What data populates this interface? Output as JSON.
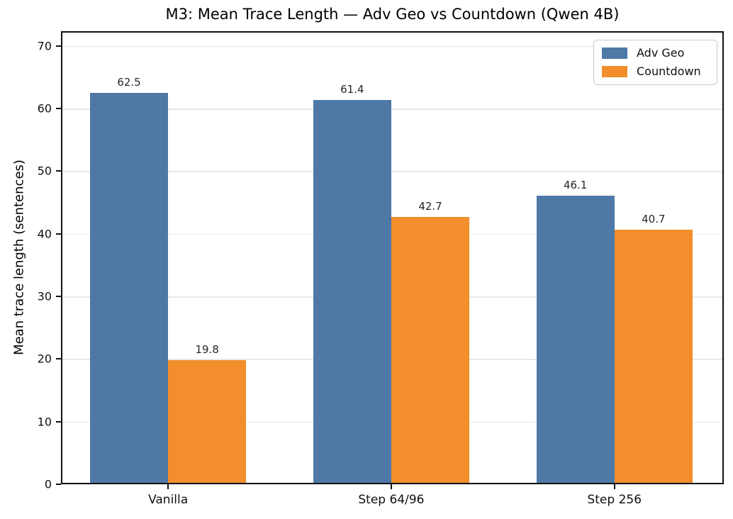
{
  "chart_data": {
    "type": "bar",
    "title": "M3: Mean Trace Length — Adv Geo vs Countdown (Qwen 4B)",
    "ylabel": "Mean trace length (sentences)",
    "xlabel": "",
    "categories": [
      "Vanilla",
      "Step 64/96",
      "Step 256"
    ],
    "series": [
      {
        "name": "Adv Geo",
        "color": "#4E79A7",
        "values": [
          62.5,
          61.4,
          46.1
        ]
      },
      {
        "name": "Countdown",
        "color": "#F28E2B",
        "values": [
          19.8,
          42.7,
          40.7
        ]
      }
    ],
    "bar_value_labels": {
      "Adv Geo": [
        "62.5",
        "61.4",
        "46.1"
      ],
      "Countdown": [
        "19.8",
        "42.7",
        "40.7"
      ]
    },
    "yticks": [
      0,
      10,
      20,
      30,
      40,
      50,
      60,
      70
    ],
    "ylim": [
      0,
      72.35
    ],
    "xlim": [
      -0.48,
      2.49
    ],
    "bar_width_units": 0.35,
    "grid": true,
    "gridline_color": "#e8e8e8",
    "legend_position": "upper right",
    "colors": {
      "adv_geo": "#4E79A7",
      "countdown": "#F28E2B",
      "spine": "#121212",
      "value_label": "#262626"
    }
  }
}
